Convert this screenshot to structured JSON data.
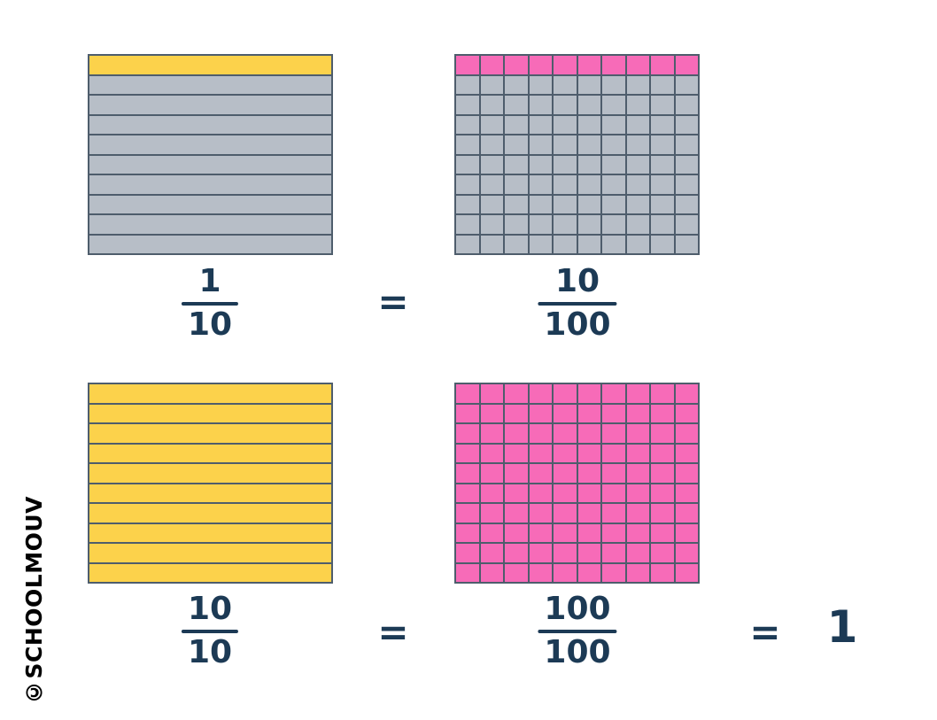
{
  "colors": {
    "yellow": "#FCD24B",
    "pink": "#F76BB8",
    "gray": "#B7BEC7",
    "grid_border": "#4E5D6C",
    "math_text": "#1C3A55",
    "watermark_text": "#000000",
    "background": "#FFFFFF"
  },
  "watermark": {
    "text": "©SCHOOLMOUV"
  },
  "row1": {
    "left_grid": {
      "rows": 10,
      "cols": 1,
      "filled_count": 1,
      "filled_color": "yellow",
      "empty_color": "gray"
    },
    "left_fraction": {
      "numerator": "1",
      "denominator": "10"
    },
    "equals": "=",
    "right_grid": {
      "rows": 10,
      "cols": 10,
      "filled_count": 10,
      "filled_color": "pink",
      "empty_color": "gray"
    },
    "right_fraction": {
      "numerator": "10",
      "denominator": "100"
    }
  },
  "row2": {
    "left_grid": {
      "rows": 10,
      "cols": 1,
      "filled_count": 10,
      "filled_color": "yellow",
      "empty_color": "gray"
    },
    "left_fraction": {
      "numerator": "10",
      "denominator": "10"
    },
    "equals": "=",
    "right_grid": {
      "rows": 10,
      "cols": 10,
      "filled_count": 100,
      "filled_color": "pink",
      "empty_color": "gray"
    },
    "right_fraction": {
      "numerator": "100",
      "denominator": "100"
    },
    "equals_result": "=",
    "result": "1"
  }
}
